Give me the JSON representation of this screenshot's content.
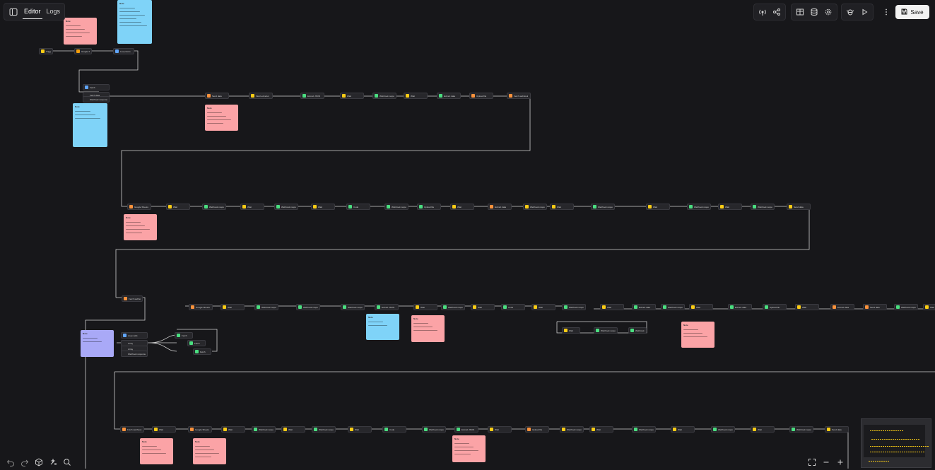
{
  "header": {
    "tabs": [
      "Editor",
      "Logs"
    ],
    "active_tab": "Editor",
    "save_label": "Save"
  },
  "toolbar_icons": [
    "broadcast-icon",
    "share-icon",
    "table-icon",
    "database-icon",
    "settings-icon",
    "debug-icon",
    "play-icon",
    "more-vertical-icon"
  ],
  "bottom_left_icons": [
    "undo-icon",
    "redo-icon",
    "cube-icon",
    "auto-layout-icon",
    "search-icon"
  ],
  "bottom_right_icons": [
    "fullscreen-icon",
    "zoom-out-icon",
    "zoom-in-icon"
  ],
  "colors": {
    "canvas": "#17171a",
    "node_bg": "#27272b",
    "note_red": "#fba3a6",
    "note_blue": "#7fd3f8",
    "note_purple": "#a9a9f7",
    "accent_yellow": "#facc15",
    "accent_green": "#4ade80",
    "accent_orange": "#f59e0b",
    "wire": "#cfcfcf"
  },
  "nodes": {
    "trigger": "Trigger",
    "google_sheets": "Google Sheets",
    "loop": "Loop items",
    "fetch": "Fetch",
    "fetch_data": "Fetch data",
    "webhook_response": "Webhook response",
    "send_data": "Send data",
    "field_extractor": "Field extractor",
    "extract_json": "Extract JSON",
    "extract_data": "Extract data",
    "upload_file": "Upload file",
    "wait": "Wait",
    "array": "Array",
    "loop_cells": "Loop cells",
    "code": "Code",
    "fetch_webhook": "Fetch webhook"
  },
  "notes": {
    "note_title": "Note"
  }
}
